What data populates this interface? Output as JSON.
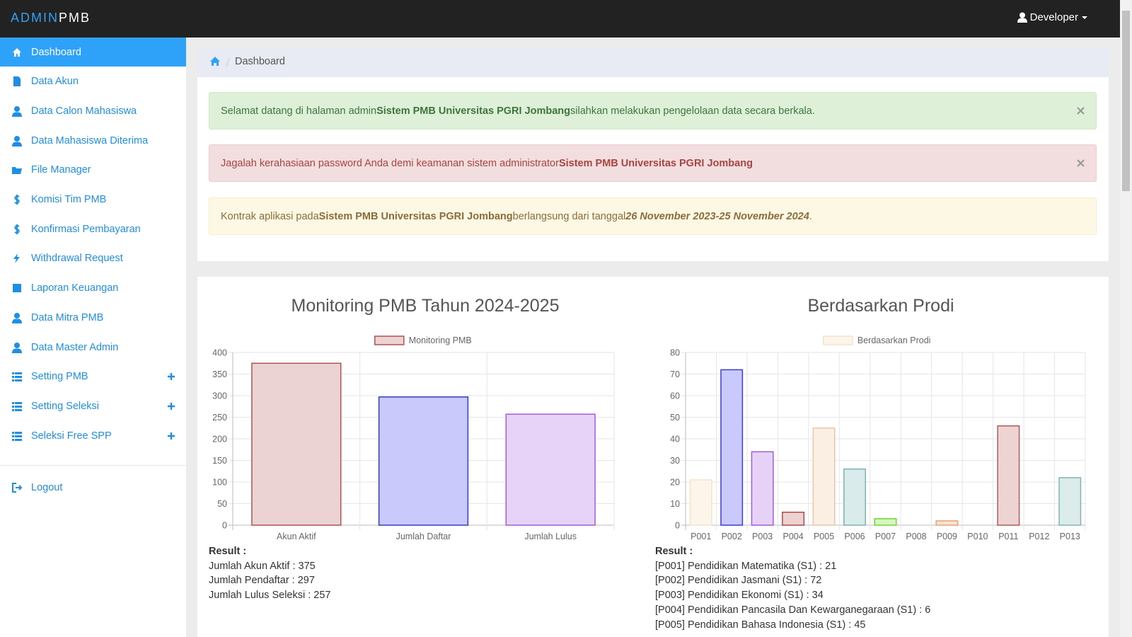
{
  "navbar": {
    "brand_prefix": "ADMIN",
    "brand_suffix": "PMB",
    "user": "Developer"
  },
  "sidebar": {
    "items": [
      {
        "label": "Dashboard",
        "active": true
      },
      {
        "label": "Data Akun"
      },
      {
        "label": "Data Calon Mahasiswa"
      },
      {
        "label": "Data Mahasiswa Diterima"
      },
      {
        "label": "File Manager"
      },
      {
        "label": "Komisi Tim PMB"
      },
      {
        "label": "Konfirmasi Pembayaran"
      },
      {
        "label": "Withdrawal Request"
      },
      {
        "label": "Laporan Keuangan"
      },
      {
        "label": "Data Mitra PMB"
      },
      {
        "label": "Data Master Admin"
      },
      {
        "label": "Setting PMB",
        "expandable": true
      },
      {
        "label": "Setting Seleksi",
        "expandable": true
      },
      {
        "label": "Seleksi Free SPP",
        "expandable": true
      }
    ],
    "logout": "Logout"
  },
  "breadcrumb": "Dashboard",
  "alerts": [
    {
      "kind": "success",
      "parts": [
        "Selamat datang di halaman admin",
        "Sistem PMB Universitas PGRI Jombang",
        "silahkan melakukan pengelolaan data secara berkala."
      ]
    },
    {
      "kind": "danger",
      "parts": [
        "Jagalah kerahasiaan password Anda demi keamanan sistem administrator",
        "Sistem PMB Universitas PGRI Jombang"
      ]
    },
    {
      "kind": "warning",
      "parts": [
        "Kontrak aplikasi pada",
        "Sistem PMB Universitas PGRI Jombang",
        "berlangsung dari tanggal",
        "26 November 2023-25 November 2024",
        "."
      ]
    }
  ],
  "chart_data": [
    {
      "type": "bar",
      "title": "Monitoring PMB Tahun 2024-2025",
      "categories": [
        "Akun Aktif",
        "Jumlah Daftar",
        "Jumlah Lulus"
      ],
      "series": [
        {
          "name": "Monitoring PMB",
          "values": [
            375,
            297,
            257
          ],
          "colors": [
            "#ecd3d3",
            "#c9c9fb",
            "#e6d3f7"
          ],
          "border_colors": [
            "#b05252",
            "#3a3ac8",
            "#a45bd9"
          ]
        }
      ],
      "ylim": [
        0,
        400
      ],
      "yticks": [
        0,
        50,
        100,
        150,
        200,
        250,
        300,
        350,
        400
      ],
      "grid": true,
      "legend": "top"
    },
    {
      "type": "bar",
      "title": "Berdasarkan Prodi",
      "categories": [
        "P001",
        "P002",
        "P003",
        "P004",
        "P005",
        "P006",
        "P007",
        "P008",
        "P009",
        "P010",
        "P011",
        "P012",
        "P013"
      ],
      "series": [
        {
          "name": "Berdasarkan Prodi",
          "values": [
            21,
            72,
            34,
            6,
            45,
            26,
            3,
            0,
            2,
            0,
            46,
            0,
            22
          ],
          "colors": [
            "#fdf5ea",
            "#c9c9fb",
            "#e6d2f7",
            "#edd2d2",
            "#fbefe3",
            "#d9ebea",
            "#d8f7c0",
            "#dddddd",
            "#fbe3d3",
            "#dddddd",
            "#eed3d3",
            "#dddddd",
            "#dbeceb"
          ],
          "border_colors": [
            "#f3e4cc",
            "#3b3bd6",
            "#a35ad8",
            "#b04848",
            "#e8c6a8",
            "#7fb3b0",
            "#6cd63a",
            "#aaaaaa",
            "#e7a07a",
            "#aaaaaa",
            "#b05a5a",
            "#aaaaaa",
            "#80b5b2"
          ]
        }
      ],
      "ylim": [
        0,
        80
      ],
      "yticks": [
        0,
        10,
        20,
        30,
        40,
        50,
        60,
        70,
        80
      ],
      "grid": true,
      "legend": "top"
    }
  ],
  "results": [
    {
      "heading": "Result :",
      "lines": [
        "Jumlah Akun Aktif : 375",
        "Jumlah Pendaftar : 297",
        "Jumlah Lulus Seleksi : 257"
      ]
    },
    {
      "heading": "Result :",
      "lines": [
        "[P001] Pendidikan Matematika (S1) : 21",
        "[P002] Pendidikan Jasmani (S1) : 72",
        "[P003] Pendidikan Ekonomi (S1) : 34",
        "[P004] Pendidikan Pancasila Dan Kewarganegaraan (S1) : 6",
        "[P005] Pendidikan Bahasa Indonesia (S1) : 45"
      ]
    }
  ]
}
